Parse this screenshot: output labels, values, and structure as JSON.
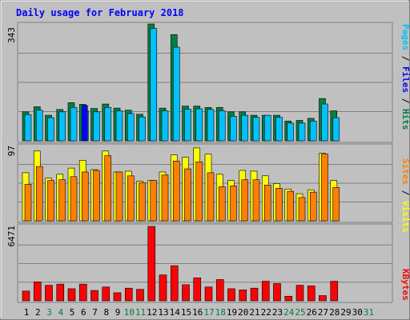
{
  "chart_data": [
    {
      "type": "bar",
      "title": "Daily usage for February 2018",
      "panel": "top",
      "ymax_label": "343",
      "ylim": [
        0,
        343
      ],
      "grid": true,
      "legend": [
        "Pages",
        "Files",
        "Hits"
      ],
      "series": [
        {
          "name": "Hits",
          "color": "#008040",
          "values": [
            85,
            100,
            75,
            92,
            112,
            107,
            95,
            108,
            96,
            90,
            78,
            343,
            96,
            312,
            102,
            102,
            98,
            98,
            85,
            85,
            75,
            75,
            75,
            58,
            60,
            66,
            124,
            88,
            0,
            0,
            0
          ]
        },
        {
          "name": "Files",
          "color": "#00c0ff",
          "values": [
            77,
            90,
            68,
            85,
            98,
            88,
            85,
            98,
            88,
            80,
            70,
            330,
            88,
            275,
            93,
            94,
            92,
            88,
            72,
            75,
            69,
            75,
            69,
            52,
            52,
            58,
            108,
            68,
            0,
            0,
            0
          ]
        },
        {
          "name": "Pages",
          "color": "#0000ff",
          "values": [
            0,
            0,
            0,
            0,
            0,
            104,
            0,
            0,
            0,
            0,
            0,
            0,
            0,
            0,
            0,
            0,
            0,
            0,
            0,
            0,
            0,
            0,
            0,
            0,
            0,
            0,
            0,
            0,
            0,
            0,
            0
          ]
        }
      ]
    },
    {
      "type": "bar",
      "panel": "middle",
      "ymax_label": "97",
      "ylim": [
        0,
        97
      ],
      "grid": true,
      "legend": [
        "Sites",
        "Visits"
      ],
      "series": [
        {
          "name": "Visits",
          "color": "#ffff00",
          "values": [
            62,
            90,
            55,
            60,
            68,
            78,
            66,
            90,
            63,
            64,
            51,
            52,
            63,
            85,
            82,
            94,
            86,
            60,
            52,
            65,
            64,
            58,
            48,
            41,
            35,
            40,
            87,
            52,
            0,
            0,
            0
          ]
        },
        {
          "name": "Sites",
          "color": "#ff8000",
          "values": [
            47,
            70,
            52,
            53,
            57,
            63,
            65,
            84,
            63,
            58,
            49,
            52,
            59,
            77,
            67,
            76,
            62,
            44,
            45,
            53,
            53,
            46,
            42,
            38,
            30,
            37,
            86,
            43,
            0,
            0,
            0
          ]
        }
      ]
    },
    {
      "type": "bar",
      "panel": "bottom",
      "ymax_label": "6471",
      "ylim": [
        0,
        6471
      ],
      "grid": true,
      "legend": [
        "KBytes"
      ],
      "series": [
        {
          "name": "KBytes",
          "color": "#ff0000",
          "values": [
            850,
            1650,
            1350,
            1450,
            1050,
            1450,
            900,
            1200,
            700,
            1100,
            1000,
            6471,
            2250,
            3050,
            1400,
            2000,
            1200,
            1850,
            1050,
            950,
            1100,
            1700,
            1500,
            400,
            1350,
            1300,
            450,
            1700,
            0,
            0,
            0
          ]
        }
      ]
    }
  ],
  "x_axis": {
    "labels": [
      "1",
      "2",
      "3",
      "4",
      "5",
      "6",
      "7",
      "8",
      "9",
      "10",
      "11",
      "12",
      "13",
      "14",
      "15",
      "16",
      "17",
      "18",
      "19",
      "20",
      "21",
      "22",
      "23",
      "24",
      "25",
      "26",
      "27",
      "28",
      "29",
      "30",
      "31"
    ],
    "weekend_color": "#008040",
    "weekday_color": "#000000",
    "weekend_days": [
      3,
      4,
      10,
      11,
      17,
      18,
      24,
      25,
      31
    ]
  },
  "colors": {
    "title": "#0000ff",
    "panel_bg": "#c0c0c0",
    "frame_bg": "#c0c0c0",
    "grid": "#808080",
    "hits": "#008040",
    "files": "#00c0ff",
    "pages": "#0000ff",
    "visits": "#ffff00",
    "sites": "#ff8000",
    "kbytes": "#ff0000"
  }
}
